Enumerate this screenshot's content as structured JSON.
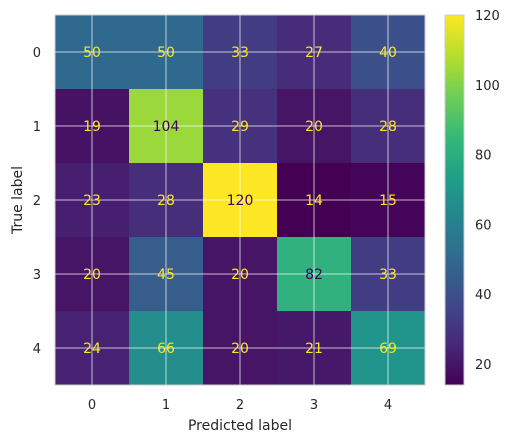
{
  "chart_data": {
    "type": "heatmap",
    "title": "",
    "xlabel": "Predicted label",
    "ylabel": "True label",
    "x_categories": [
      "0",
      "1",
      "2",
      "3",
      "4"
    ],
    "y_categories": [
      "0",
      "1",
      "2",
      "3",
      "4"
    ],
    "values": [
      [
        50,
        50,
        33,
        27,
        40
      ],
      [
        19,
        104,
        29,
        20,
        28
      ],
      [
        23,
        28,
        120,
        14,
        15
      ],
      [
        20,
        45,
        20,
        82,
        33
      ],
      [
        24,
        66,
        20,
        21,
        69
      ]
    ],
    "colormap": "viridis",
    "colorbar": {
      "range": [
        14,
        120
      ],
      "ticks": [
        20,
        40,
        60,
        80,
        100,
        120
      ]
    },
    "grid": true,
    "annotation_colors": {
      "on_dark": "#fde725",
      "on_light": "#440154"
    }
  }
}
